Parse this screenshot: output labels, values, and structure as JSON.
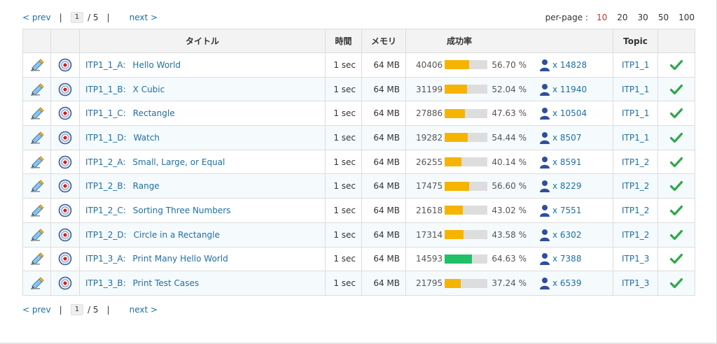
{
  "pager": {
    "prev_label": "< prev",
    "separator": "|",
    "current_page": "1",
    "total_pages": "/ 5",
    "next_label": "next >"
  },
  "per_page": {
    "label": "per-page :",
    "options": [
      "10",
      "20",
      "30",
      "50",
      "100"
    ],
    "selected": "10"
  },
  "table": {
    "headers": {
      "title": "タイトル",
      "time": "時間",
      "memory": "メモリ",
      "rate": "成功率",
      "topic": "Topic"
    },
    "rows": [
      {
        "id": "ITP1_1_A:",
        "name": "Hello World",
        "time": "1 sec",
        "memory": "64 MB",
        "submissions": "40406",
        "rate": "56.70 %",
        "solved": "x 14828",
        "topic": "ITP1_1"
      },
      {
        "id": "ITP1_1_B:",
        "name": "X Cubic",
        "time": "1 sec",
        "memory": "64 MB",
        "submissions": "31199",
        "rate": "52.04 %",
        "solved": "x 11940",
        "topic": "ITP1_1"
      },
      {
        "id": "ITP1_1_C:",
        "name": "Rectangle",
        "time": "1 sec",
        "memory": "64 MB",
        "submissions": "27886",
        "rate": "47.63 %",
        "solved": "x 10504",
        "topic": "ITP1_1"
      },
      {
        "id": "ITP1_1_D:",
        "name": "Watch",
        "time": "1 sec",
        "memory": "64 MB",
        "submissions": "19282",
        "rate": "54.44 %",
        "solved": "x 8507",
        "topic": "ITP1_1"
      },
      {
        "id": "ITP1_2_A:",
        "name": "Small, Large, or Equal",
        "time": "1 sec",
        "memory": "64 MB",
        "submissions": "26255",
        "rate": "40.14 %",
        "solved": "x 8591",
        "topic": "ITP1_2"
      },
      {
        "id": "ITP1_2_B:",
        "name": "Range",
        "time": "1 sec",
        "memory": "64 MB",
        "submissions": "17475",
        "rate": "56.60 %",
        "solved": "x 8229",
        "topic": "ITP1_2"
      },
      {
        "id": "ITP1_2_C:",
        "name": "Sorting Three Numbers",
        "time": "1 sec",
        "memory": "64 MB",
        "submissions": "21618",
        "rate": "43.02 %",
        "solved": "x 7551",
        "topic": "ITP1_2"
      },
      {
        "id": "ITP1_2_D:",
        "name": "Circle in a Rectangle",
        "time": "1 sec",
        "memory": "64 MB",
        "submissions": "17314",
        "rate": "43.58 %",
        "solved": "x 6302",
        "topic": "ITP1_2"
      },
      {
        "id": "ITP1_3_A:",
        "name": "Print Many Hello World",
        "time": "1 sec",
        "memory": "64 MB",
        "submissions": "14593",
        "rate": "64.63 %",
        "solved": "x 7388",
        "topic": "ITP1_3"
      },
      {
        "id": "ITP1_3_B:",
        "name": "Print Test Cases",
        "time": "1 sec",
        "memory": "64 MB",
        "submissions": "21795",
        "rate": "37.24 %",
        "solved": "x 6539",
        "topic": "ITP1_3"
      }
    ]
  },
  "icons": {
    "edit": "pencil-edit-icon",
    "camera": "camera-lens-icon",
    "user": "user-icon",
    "check": "check-icon"
  },
  "colors": {
    "link": "#1d6fa5",
    "selected_per_page": "#c0392b",
    "rate_bar": "#f6b400",
    "rate_bar_high": "#1fc066",
    "rate_bar_track": "#dddddd",
    "check": "#2ea84a",
    "user": "#2f4e9e"
  }
}
